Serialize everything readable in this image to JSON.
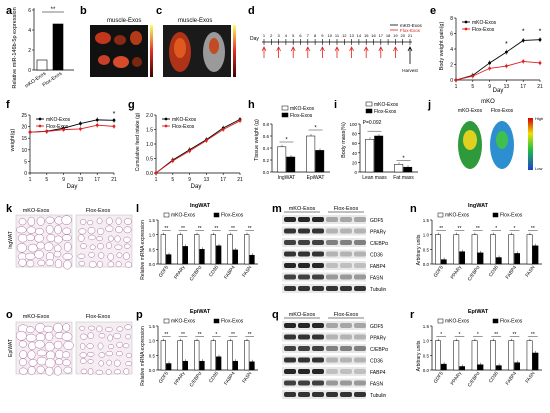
{
  "panels": {
    "a": {
      "letter": "a",
      "ylabel": "Relative miR-146b-5p expression",
      "categories": [
        "mKO-Exos",
        "Flox-Exos"
      ],
      "sig": "**",
      "yticks": [
        "0",
        "2",
        "4",
        "6"
      ]
    },
    "b": {
      "letter": "b",
      "title": "muscle-Exos"
    },
    "c": {
      "letter": "c",
      "title": "muscle-Exos"
    },
    "d": {
      "letter": "d",
      "day_label": "Day",
      "days": [
        "1",
        "2",
        "3",
        "4",
        "5",
        "6",
        "7",
        "8",
        "9",
        "10",
        "11",
        "12",
        "13",
        "14",
        "15",
        "16",
        "17",
        "18",
        "19",
        "20",
        "21"
      ],
      "harvest": "Harvest",
      "legend": [
        "mKO-Exos",
        "Flox-Exos"
      ]
    },
    "e": {
      "letter": "e",
      "ylabel": "Body weight gain(g)",
      "xlabel": "Day",
      "xticks": [
        "1",
        "5",
        "9",
        "13",
        "17",
        "21"
      ],
      "yticks": [
        "0",
        "2",
        "4",
        "6",
        "8"
      ],
      "legend": [
        "mKO-Exos",
        "Flox-Exos"
      ],
      "stars": [
        "*",
        "*",
        "*"
      ]
    },
    "f": {
      "letter": "f",
      "ylabel": "weight(g)",
      "xlabel": "Day",
      "xticks": [
        "1",
        "5",
        "9",
        "13",
        "17",
        "21"
      ],
      "yticks": [
        "0",
        "5",
        "10",
        "15",
        "20",
        "25"
      ],
      "legend": [
        "mKO-Exos",
        "Flox-Exos"
      ],
      "star": "*"
    },
    "g": {
      "letter": "g",
      "ylabel": "Cumulative feed intake (g)",
      "xlabel": "Day",
      "xticks": [
        "1",
        "5",
        "9",
        "13",
        "17",
        "21"
      ],
      "yticks": [
        "0.0",
        "0.5",
        "1.0",
        "1.5",
        "2.0"
      ],
      "legend": [
        "mKO-Exos",
        "Flox-Exos"
      ]
    },
    "h": {
      "letter": "h",
      "ylabel": "Tissue weight (g)",
      "categories": [
        "IngWAT",
        "EpiWAT"
      ],
      "yticks": [
        "0.0",
        "0.2",
        "0.4",
        "0.6",
        "0.8"
      ],
      "legend": [
        "mKO-Exos",
        "Flox-Exos"
      ],
      "sig": "*"
    },
    "i": {
      "letter": "i",
      "ylabel": "Body mass(%)",
      "categories": [
        "Lean mass",
        "Fat mass"
      ],
      "yticks": [
        "0",
        "20",
        "40",
        "60",
        "80",
        "100"
      ],
      "legend": [
        "mKO-Exos",
        "Flox-Exos"
      ],
      "pval": "P=0.092",
      "sig": "*"
    },
    "j": {
      "letter": "j",
      "title": "mKO",
      "labels": [
        "mKO-Exos",
        "Flox-Exos"
      ],
      "scale": [
        "High",
        "Low"
      ]
    },
    "k": {
      "letter": "k",
      "tissue": "IngWAT",
      "labels": [
        "mKO-Exos",
        "Flox-Exos"
      ]
    },
    "l": {
      "letter": "l",
      "title": "IngWAT",
      "ylabel": "Relative mRNA expression",
      "genes": [
        "GDF5",
        "PPARγ",
        "C/EBPα",
        "CD36",
        "FABP4",
        "FASN"
      ],
      "legend": [
        "mKO-Exos",
        "Flox-Exos"
      ],
      "sig": "**",
      "yticks": [
        "0.0",
        "0.5",
        "1.0",
        "1.5"
      ]
    },
    "m": {
      "letter": "m",
      "labels": [
        "mKO-Exos",
        "Flox-Exos"
      ],
      "bands": [
        "GDF5",
        "PPARγ",
        "C/EBPα",
        "CD36",
        "FABP4",
        "FASN",
        "Tubulin"
      ]
    },
    "n": {
      "letter": "n",
      "title": "IngWAT",
      "ylabel": "Arbitrary units",
      "genes": [
        "GDF5",
        "PPARγ",
        "C/EBPα",
        "CD36",
        "FABP4",
        "FASN"
      ],
      "legend": [
        "mKO-Exos",
        "Flox-Exos"
      ],
      "yticks": [
        "0.0",
        "0.5",
        "1.0",
        "1.5"
      ]
    },
    "o": {
      "letter": "o",
      "tissue": "EpiWAT",
      "labels": [
        "mKO-Exos",
        "Flox-Exos"
      ]
    },
    "p": {
      "letter": "p",
      "title": "EpiWAT",
      "ylabel": "Relative mRNA expression",
      "genes": [
        "GDF5",
        "PPARγ",
        "C/EBPα",
        "CD36",
        "FABP4",
        "FASN"
      ],
      "legend": [
        "mKO-Exos",
        "Flox-Exos"
      ],
      "yticks": [
        "0.0",
        "0.5",
        "1.0",
        "1.5"
      ]
    },
    "q": {
      "letter": "q",
      "labels": [
        "mKO-Exos",
        "Flox-Exos"
      ],
      "bands": [
        "GDF5",
        "PPARγ",
        "C/EBPα",
        "CD36",
        "FABP4",
        "FASN",
        "Tubulin"
      ]
    },
    "r": {
      "letter": "r",
      "title": "EpiWAT",
      "ylabel": "Arbitrary units",
      "genes": [
        "GDF5",
        "PPARγ",
        "C/EBPα",
        "CD36",
        "FABP4",
        "FASN"
      ],
      "legend": [
        "mKO-Exos",
        "Flox-Exos"
      ],
      "yticks": [
        "0.0",
        "0.5",
        "1.0",
        "1.5"
      ]
    }
  },
  "chart_data": [
    {
      "panel": "a",
      "type": "bar",
      "categories": [
        "mKO-Exos",
        "Flox-Exos"
      ],
      "values": [
        1.0,
        4.6
      ],
      "ylim": [
        0,
        6
      ]
    },
    {
      "panel": "e",
      "type": "line",
      "x": [
        1,
        5,
        9,
        13,
        17,
        21
      ],
      "series": [
        {
          "name": "mKO-Exos",
          "values": [
            0,
            0.6,
            2.2,
            3.6,
            5.1,
            5.2
          ]
        },
        {
          "name": "Flox-Exos",
          "values": [
            0,
            0.5,
            1.5,
            1.8,
            2.4,
            2.2
          ]
        }
      ],
      "ylim": [
        0,
        8
      ]
    },
    {
      "panel": "f",
      "type": "line",
      "x": [
        1,
        5,
        9,
        13,
        17,
        21
      ],
      "series": [
        {
          "name": "mKO-Exos",
          "values": [
            17.6,
            18.0,
            19.3,
            21.3,
            22.9,
            22.7
          ]
        },
        {
          "name": "Flox-Exos",
          "values": [
            17.6,
            17.9,
            18.7,
            19.0,
            20.6,
            20.1
          ]
        }
      ],
      "ylim": [
        0,
        25
      ]
    },
    {
      "panel": "g",
      "type": "line",
      "x": [
        1,
        5,
        9,
        13,
        17,
        21
      ],
      "series": [
        {
          "name": "mKO-Exos",
          "values": [
            0,
            0.45,
            0.8,
            1.15,
            1.55,
            1.85
          ]
        },
        {
          "name": "Flox-Exos",
          "values": [
            0,
            0.42,
            0.76,
            1.12,
            1.5,
            1.8
          ]
        }
      ],
      "ylim": [
        0,
        2
      ]
    },
    {
      "panel": "h",
      "type": "bar",
      "categories": [
        "IngWAT",
        "EpiWAT"
      ],
      "series": [
        {
          "name": "mKO-Exos",
          "values": [
            0.42,
            0.6
          ]
        },
        {
          "name": "Flox-Exos",
          "values": [
            0.25,
            0.36
          ]
        }
      ],
      "ylim": [
        0,
        0.8
      ]
    },
    {
      "panel": "i",
      "type": "bar",
      "categories": [
        "Lean mass",
        "Fat mass"
      ],
      "series": [
        {
          "name": "mKO-Exos",
          "values": [
            68,
            16
          ]
        },
        {
          "name": "Flox-Exos",
          "values": [
            75,
            10
          ]
        }
      ],
      "ylim": [
        0,
        100
      ]
    },
    {
      "panel": "l",
      "type": "bar",
      "categories": [
        "GDF5",
        "PPARγ",
        "C/EBPα",
        "CD36",
        "FABP4",
        "FASN"
      ],
      "series": [
        {
          "name": "mKO-Exos",
          "values": [
            1,
            1,
            1,
            1,
            1,
            1
          ]
        },
        {
          "name": "Flox-Exos",
          "values": [
            0.32,
            0.6,
            0.5,
            0.62,
            0.48,
            0.3
          ]
        }
      ],
      "ylim": [
        0,
        1.5
      ]
    },
    {
      "panel": "n",
      "type": "bar",
      "categories": [
        "GDF5",
        "PPARγ",
        "C/EBPα",
        "CD36",
        "FABP4",
        "FASN"
      ],
      "series": [
        {
          "name": "mKO-Exos",
          "values": [
            1,
            1,
            1,
            1,
            1,
            1
          ]
        },
        {
          "name": "Flox-Exos",
          "values": [
            0.15,
            0.42,
            0.38,
            0.22,
            0.36,
            0.62
          ]
        }
      ],
      "ylim": [
        0,
        1.5
      ]
    },
    {
      "panel": "p",
      "type": "bar",
      "categories": [
        "GDF5",
        "PPARγ",
        "C/EBPα",
        "CD36",
        "FABP4",
        "FASN"
      ],
      "series": [
        {
          "name": "mKO-Exos",
          "values": [
            1,
            1,
            1,
            1,
            1,
            1
          ]
        },
        {
          "name": "Flox-Exos",
          "values": [
            0.22,
            0.3,
            0.3,
            0.45,
            0.3,
            0.28
          ]
        }
      ],
      "ylim": [
        0,
        1.5
      ]
    },
    {
      "panel": "r",
      "type": "bar",
      "categories": [
        "GDF5",
        "PPARγ",
        "C/EBPα",
        "CD36",
        "FABP4",
        "FASN"
      ],
      "series": [
        {
          "name": "mKO-Exos",
          "values": [
            1,
            1,
            1,
            1,
            1,
            1
          ]
        },
        {
          "name": "Flox-Exos",
          "values": [
            0.2,
            0.12,
            0.18,
            0.15,
            0.25,
            0.58
          ]
        }
      ],
      "ylim": [
        0,
        1.5
      ]
    }
  ]
}
